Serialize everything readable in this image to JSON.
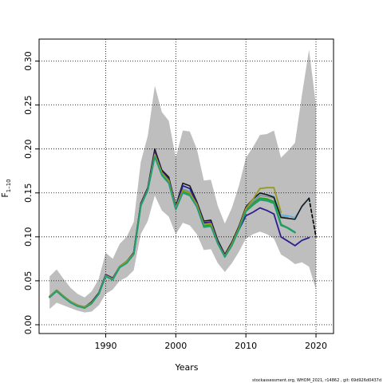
{
  "chart_data": {
    "type": "line",
    "xlabel": "Years",
    "ylabel_main": "F",
    "ylabel_sub": "1–10",
    "xlim": [
      1980.5,
      2022.5
    ],
    "ylim": [
      -0.01,
      0.325
    ],
    "xticks": [
      1990,
      2000,
      2010,
      2020
    ],
    "yticks": [
      0.0,
      0.05,
      0.1,
      0.15,
      0.2,
      0.25,
      0.3
    ],
    "ytick_labels": [
      "0.00",
      "0.05",
      "0.10",
      "0.15",
      "0.20",
      "0.25",
      "0.30"
    ],
    "grid": true,
    "confidence_band": {
      "color": "#bebebe",
      "x": [
        1982,
        1983,
        1984,
        1985,
        1986,
        1987,
        1988,
        1989,
        1990,
        1991,
        1992,
        1993,
        1994,
        1995,
        1996,
        1997,
        1998,
        1999,
        2000,
        2001,
        2002,
        2003,
        2004,
        2005,
        2006,
        2007,
        2008,
        2009,
        2010,
        2011,
        2012,
        2013,
        2014,
        2015,
        2016,
        2017,
        2018,
        2019,
        2020
      ],
      "upper": [
        0.055,
        0.063,
        0.052,
        0.042,
        0.035,
        0.031,
        0.038,
        0.052,
        0.082,
        0.075,
        0.092,
        0.1,
        0.117,
        0.185,
        0.215,
        0.272,
        0.242,
        0.232,
        0.19,
        0.221,
        0.22,
        0.2,
        0.164,
        0.165,
        0.135,
        0.115,
        0.133,
        0.158,
        0.19,
        0.202,
        0.216,
        0.217,
        0.221,
        0.19,
        0.198,
        0.207,
        0.262,
        0.313,
        0.25
      ],
      "lower": [
        0.018,
        0.025,
        0.022,
        0.019,
        0.016,
        0.014,
        0.015,
        0.022,
        0.035,
        0.04,
        0.05,
        0.054,
        0.062,
        0.103,
        0.118,
        0.147,
        0.13,
        0.123,
        0.103,
        0.116,
        0.113,
        0.103,
        0.085,
        0.086,
        0.07,
        0.06,
        0.07,
        0.083,
        0.098,
        0.103,
        0.106,
        0.103,
        0.098,
        0.08,
        0.075,
        0.069,
        0.071,
        0.066,
        0.04
      ]
    },
    "series": [
      {
        "color": "#2ca02c",
        "width": 2.4,
        "x": [
          1982,
          1983,
          1984,
          1985,
          1986,
          1987,
          1988,
          1989,
          1990,
          1991,
          1992,
          1993,
          1994,
          1995,
          1996,
          1997,
          1998,
          1999,
          2000,
          2001,
          2002,
          2003,
          2004,
          2005,
          2006,
          2007,
          2008,
          2009,
          2010,
          2011,
          2012,
          2013,
          2014,
          2015,
          2016,
          2017
        ],
        "y": [
          0.032,
          0.039,
          0.032,
          0.026,
          0.022,
          0.02,
          0.025,
          0.035,
          0.056,
          0.052,
          0.066,
          0.072,
          0.081,
          0.136,
          0.154,
          0.193,
          0.172,
          0.163,
          0.133,
          0.152,
          0.149,
          0.136,
          0.113,
          0.114,
          0.093,
          0.078,
          0.091,
          0.109,
          0.13,
          0.138,
          0.144,
          0.143,
          0.14,
          0.114,
          0.11,
          0.105
        ]
      },
      {
        "color": "#56b4e9",
        "width": 1.6,
        "x": [
          1982,
          1983,
          1984,
          1985,
          1986,
          1987,
          1988,
          1989,
          1990,
          1991,
          1992,
          1993,
          1994,
          1995,
          1996,
          1997,
          1998,
          1999,
          2000,
          2001,
          2002,
          2003,
          2004,
          2005,
          2006,
          2007,
          2008,
          2009,
          2010,
          2011,
          2012,
          2013,
          2014,
          2015,
          2016,
          2017,
          2018,
          2019
        ],
        "y": [
          0.031,
          0.038,
          0.031,
          0.025,
          0.022,
          0.02,
          0.026,
          0.036,
          0.057,
          0.053,
          0.065,
          0.071,
          0.082,
          0.137,
          0.155,
          0.195,
          0.174,
          0.166,
          0.134,
          0.155,
          0.152,
          0.138,
          0.115,
          0.116,
          0.095,
          0.079,
          0.093,
          0.111,
          0.133,
          0.142,
          0.149,
          0.148,
          0.146,
          0.125,
          0.124,
          0.122,
          0.134,
          0.144
        ]
      },
      {
        "color": "#8c8c8c",
        "width": 1.6,
        "x": [
          1982,
          1983,
          1984,
          1985,
          1986,
          1987,
          1988,
          1989,
          1990,
          1991,
          1992,
          1993,
          1994,
          1995,
          1996,
          1997,
          1998,
          1999,
          2000,
          2001,
          2002,
          2003,
          2004,
          2005,
          2006,
          2007,
          2008,
          2009,
          2010,
          2011,
          2012,
          2013,
          2014,
          2015,
          2016
        ],
        "y": [
          0.032,
          0.039,
          0.032,
          0.026,
          0.022,
          0.02,
          0.025,
          0.036,
          0.057,
          0.053,
          0.066,
          0.072,
          0.082,
          0.137,
          0.155,
          0.196,
          0.173,
          0.165,
          0.133,
          0.154,
          0.151,
          0.137,
          0.114,
          0.115,
          0.094,
          0.078,
          0.092,
          0.11,
          0.132,
          0.14,
          0.147,
          0.146,
          0.144,
          0.123,
          0.122
        ]
      },
      {
        "color": "#1a1a1a",
        "width": 1.6,
        "x": [
          1982,
          1983,
          1984,
          1985,
          1986,
          1987,
          1988,
          1989,
          1990,
          1991,
          1992,
          1993,
          1994,
          1995,
          1996,
          1997,
          1998,
          1999,
          2000,
          2001,
          2002,
          2003,
          2004,
          2005,
          2006,
          2007,
          2008,
          2009,
          2010,
          2011,
          2012,
          2013,
          2014,
          2015,
          2016,
          2017,
          2018,
          2019
        ],
        "y": [
          0.032,
          0.039,
          0.032,
          0.026,
          0.022,
          0.02,
          0.026,
          0.036,
          0.057,
          0.053,
          0.066,
          0.072,
          0.082,
          0.138,
          0.156,
          0.2,
          0.176,
          0.168,
          0.135,
          0.161,
          0.158,
          0.14,
          0.118,
          0.119,
          0.096,
          0.08,
          0.094,
          0.112,
          0.134,
          0.143,
          0.15,
          0.148,
          0.145,
          0.122,
          0.121,
          0.12,
          0.135,
          0.144
        ]
      },
      {
        "color": "#000000",
        "width": 1.6,
        "dash": "4,3",
        "x": [
          2019,
          2020
        ],
        "y": [
          0.144,
          0.1
        ]
      },
      {
        "color": "#2e1f8c",
        "width": 1.8,
        "x": [
          1982,
          1983,
          1984,
          1985,
          1986,
          1987,
          1988,
          1989,
          1990,
          1991,
          1992,
          1993,
          1994,
          1995,
          1996,
          1997,
          1998,
          1999,
          2000,
          2001,
          2002,
          2003,
          2004,
          2005,
          2006,
          2007,
          2008,
          2009,
          2010,
          2011,
          2012,
          2013,
          2014,
          2015,
          2016,
          2017,
          2018,
          2019
        ],
        "y": [
          0.032,
          0.039,
          0.032,
          0.026,
          0.022,
          0.02,
          0.025,
          0.035,
          0.057,
          0.053,
          0.066,
          0.072,
          0.082,
          0.137,
          0.155,
          0.197,
          0.174,
          0.166,
          0.134,
          0.158,
          0.155,
          0.138,
          0.116,
          0.117,
          0.094,
          0.079,
          0.092,
          0.108,
          0.124,
          0.128,
          0.133,
          0.13,
          0.126,
          0.1,
          0.095,
          0.09,
          0.096,
          0.099
        ]
      },
      {
        "color": "#9a9a22",
        "width": 1.8,
        "x": [
          1982,
          1983,
          1984,
          1985,
          1986,
          1987,
          1988,
          1989,
          1990,
          1991,
          1992,
          1993,
          1994,
          1995,
          1996,
          1997,
          1998,
          1999,
          2000,
          2001,
          2002,
          2003,
          2004,
          2005,
          2006,
          2007,
          2008,
          2009,
          2010,
          2011,
          2012,
          2013,
          2014,
          2015
        ],
        "y": [
          0.032,
          0.039,
          0.032,
          0.026,
          0.022,
          0.02,
          0.025,
          0.035,
          0.056,
          0.052,
          0.066,
          0.072,
          0.081,
          0.136,
          0.154,
          0.194,
          0.173,
          0.164,
          0.133,
          0.153,
          0.15,
          0.137,
          0.114,
          0.115,
          0.093,
          0.078,
          0.092,
          0.11,
          0.132,
          0.143,
          0.155,
          0.156,
          0.156,
          0.128
        ]
      },
      {
        "color": "#1b9e77",
        "width": 1.8,
        "x": [
          1982,
          1983,
          1984,
          1985,
          1986,
          1987,
          1988,
          1989,
          1990,
          1991,
          1992,
          1993,
          1994,
          1995,
          1996,
          1997,
          1998,
          1999,
          2000,
          2001,
          2002,
          2003,
          2004,
          2005,
          2006,
          2007,
          2008,
          2009,
          2010,
          2011,
          2012,
          2013,
          2014,
          2015,
          2016,
          2017
        ],
        "y": [
          0.031,
          0.038,
          0.031,
          0.025,
          0.021,
          0.019,
          0.024,
          0.035,
          0.055,
          0.051,
          0.065,
          0.07,
          0.08,
          0.135,
          0.153,
          0.191,
          0.17,
          0.161,
          0.131,
          0.15,
          0.147,
          0.134,
          0.111,
          0.112,
          0.092,
          0.077,
          0.09,
          0.108,
          0.129,
          0.136,
          0.142,
          0.141,
          0.138,
          0.113,
          0.11,
          0.105
        ]
      }
    ]
  },
  "footer": "stockassessment.org, WHOM_2021, r14862 , git: 69d926d0437d"
}
